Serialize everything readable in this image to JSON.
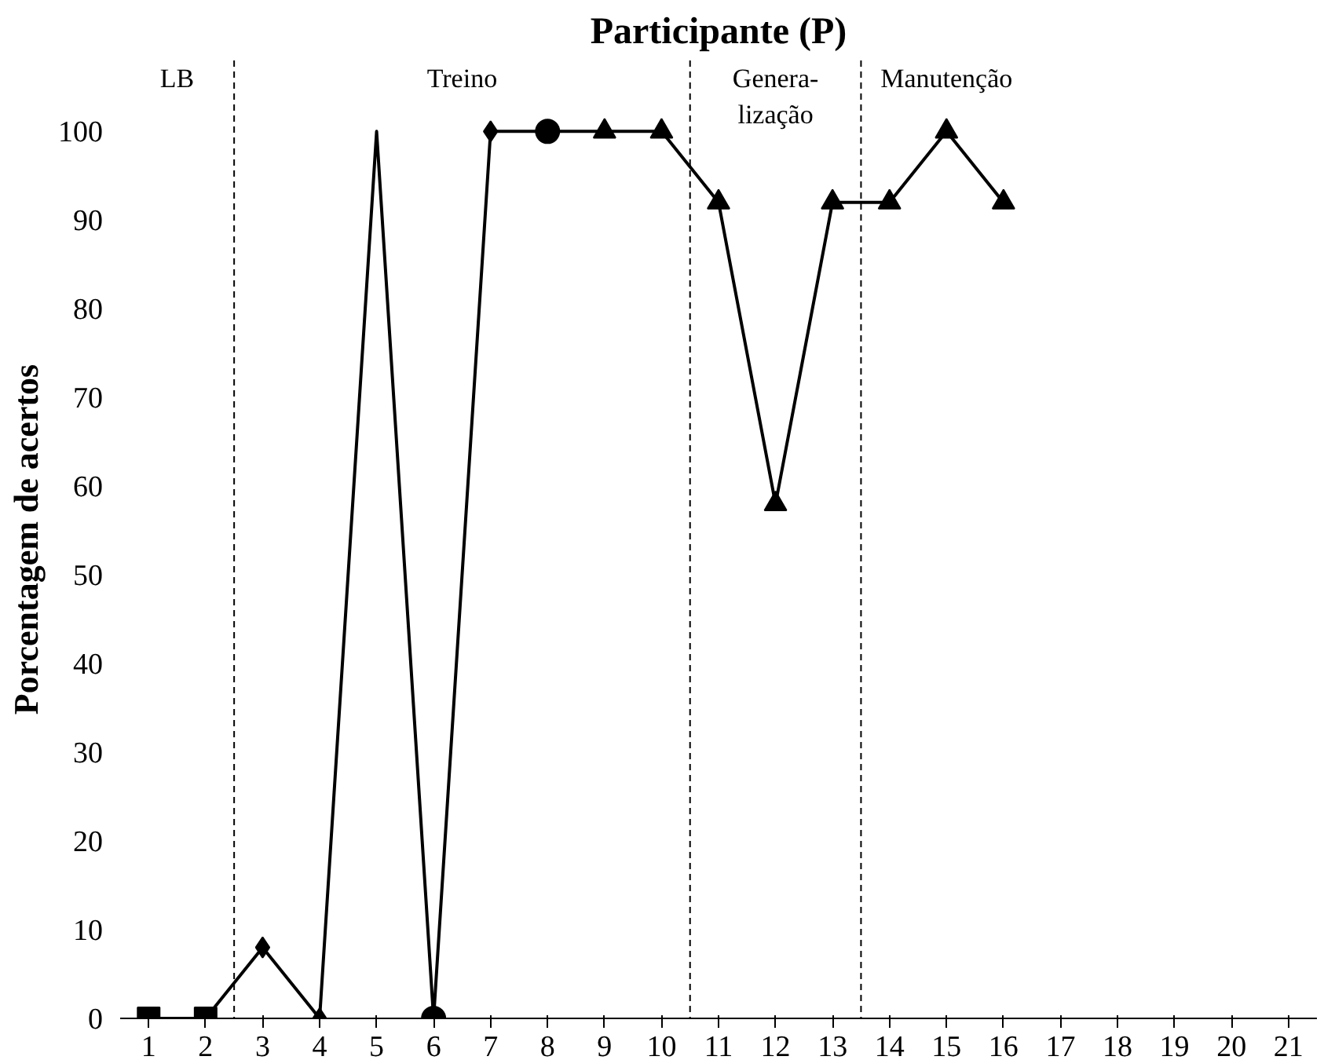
{
  "chart_data": {
    "type": "line",
    "title": "Participante (P)",
    "ylabel": "Porcentagem de acertos",
    "x": [
      1,
      2,
      3,
      4,
      5,
      6,
      7,
      8,
      9,
      10,
      11,
      12,
      13,
      14,
      15,
      16
    ],
    "series": [
      {
        "color": "#000000",
        "marker": "none",
        "values": [
          0,
          0,
          8,
          0,
          100,
          0,
          100,
          100,
          100,
          100,
          92,
          58,
          92,
          92,
          100,
          92
        ]
      },
      {
        "type": "scatter",
        "color": "#000000",
        "marker": "square",
        "x": [
          1,
          2
        ],
        "values": [
          0,
          0
        ]
      },
      {
        "type": "scatter",
        "color": "#000000",
        "marker": "diamond",
        "x": [
          3,
          4,
          7
        ],
        "values": [
          8,
          0,
          100
        ]
      },
      {
        "type": "scatter",
        "color": "#000000",
        "marker": "circle",
        "x": [
          6,
          8
        ],
        "values": [
          0,
          100
        ]
      },
      {
        "type": "scatter",
        "color": "#000000",
        "marker": "triangle",
        "x": [
          9,
          10,
          11,
          12,
          13,
          14,
          15,
          16
        ],
        "values": [
          100,
          100,
          92,
          58,
          92,
          92,
          100,
          92
        ]
      }
    ],
    "xlim": [
      0.5,
      21.5
    ],
    "xticks": [
      1,
      2,
      3,
      4,
      5,
      6,
      7,
      8,
      9,
      10,
      11,
      12,
      13,
      14,
      15,
      16,
      17,
      18,
      19,
      20,
      21
    ],
    "ylim": [
      0,
      108
    ],
    "yticks": [
      0,
      10,
      20,
      30,
      40,
      50,
      60,
      70,
      80,
      90,
      100
    ],
    "ref_lines": [
      {
        "axis": "x",
        "value": 2.5,
        "line_style": "dashed"
      },
      {
        "axis": "x",
        "value": 10.5,
        "line_style": "dashed"
      },
      {
        "axis": "x",
        "value": 13.5,
        "line_style": "dashed"
      }
    ],
    "annotations": [
      "LB",
      "Treino",
      "Genera-\nlização",
      "Manutenção"
    ],
    "grid": false
  }
}
